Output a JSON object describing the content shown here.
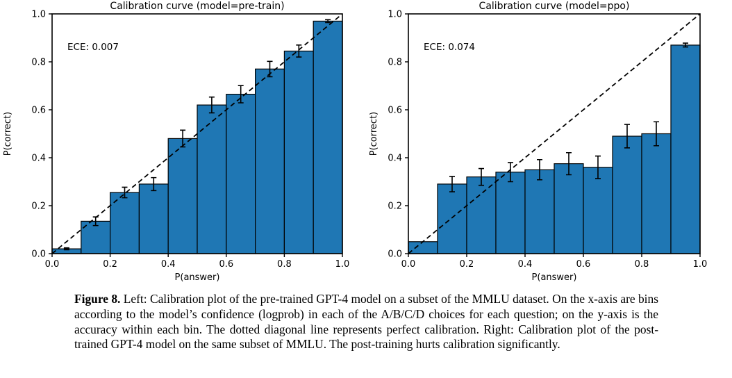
{
  "figure": {
    "caption_label": "Figure 8.",
    "caption_text": "Left: Calibration plot of the pre-trained GPT-4 model on a subset of the MMLU dataset. On the x-axis are bins according to the model’s confidence (logprob) in each of the A/B/C/D choices for each question; on the y-axis is the accuracy within each bin. The dotted diagonal line represents perfect calibration. Right: Calibration plot of the post-trained GPT-4 model on the same subset of MMLU. The post-training hurts calibration significantly."
  },
  "chart_data": [
    {
      "type": "bar",
      "title": "Calibration curve (model=pre-train)",
      "annotation": "ECE: 0.007",
      "xlabel": "P(answer)",
      "ylabel": "P(correct)",
      "xlim": [
        0.0,
        1.0
      ],
      "ylim": [
        0.0,
        1.0
      ],
      "xticks": [
        0.0,
        0.2,
        0.4,
        0.6,
        0.8,
        1.0
      ],
      "yticks": [
        0.0,
        0.2,
        0.4,
        0.6,
        0.8,
        1.0
      ],
      "xtick_labels": [
        "0.0",
        "0.2",
        "0.4",
        "0.6",
        "0.8",
        "1.0"
      ],
      "ytick_labels": [
        "0.0",
        "0.2",
        "0.4",
        "0.6",
        "0.8",
        "1.0"
      ],
      "bin_edges": [
        0.0,
        0.1,
        0.2,
        0.3,
        0.4,
        0.5,
        0.6,
        0.7,
        0.8,
        0.9,
        1.0
      ],
      "values": [
        0.02,
        0.135,
        0.255,
        0.29,
        0.48,
        0.62,
        0.665,
        0.77,
        0.845,
        0.97
      ],
      "errors": [
        0.004,
        0.018,
        0.022,
        0.027,
        0.035,
        0.033,
        0.036,
        0.032,
        0.025,
        0.006
      ],
      "diagonal_line": true,
      "grid": false,
      "bar_color": "#1f77b4",
      "bar_edge_color": "#000000",
      "diagonal_color": "#000000",
      "text_color": "#000000"
    },
    {
      "type": "bar",
      "title": "Calibration curve (model=ppo)",
      "annotation": "ECE: 0.074",
      "xlabel": "P(answer)",
      "ylabel": "P(correct)",
      "xlim": [
        0.0,
        1.0
      ],
      "ylim": [
        0.0,
        1.0
      ],
      "xticks": [
        0.0,
        0.2,
        0.4,
        0.6,
        0.8,
        1.0
      ],
      "yticks": [
        0.0,
        0.2,
        0.4,
        0.6,
        0.8,
        1.0
      ],
      "xtick_labels": [
        "0.0",
        "0.2",
        "0.4",
        "0.6",
        "0.8",
        "1.0"
      ],
      "ytick_labels": [
        "0.0",
        "0.2",
        "0.4",
        "0.6",
        "0.8",
        "1.0"
      ],
      "bin_edges": [
        0.0,
        0.1,
        0.2,
        0.3,
        0.4,
        0.5,
        0.6,
        0.7,
        0.8,
        0.9,
        1.0
      ],
      "values": [
        0.05,
        0.29,
        0.32,
        0.34,
        0.35,
        0.375,
        0.36,
        0.49,
        0.5,
        0.87
      ],
      "errors": [
        0,
        0.032,
        0.035,
        0.04,
        0.042,
        0.046,
        0.047,
        0.049,
        0.05,
        0.008
      ],
      "diagonal_line": true,
      "grid": false,
      "bar_color": "#1f77b4",
      "bar_edge_color": "#000000",
      "diagonal_color": "#000000",
      "text_color": "#000000"
    }
  ]
}
